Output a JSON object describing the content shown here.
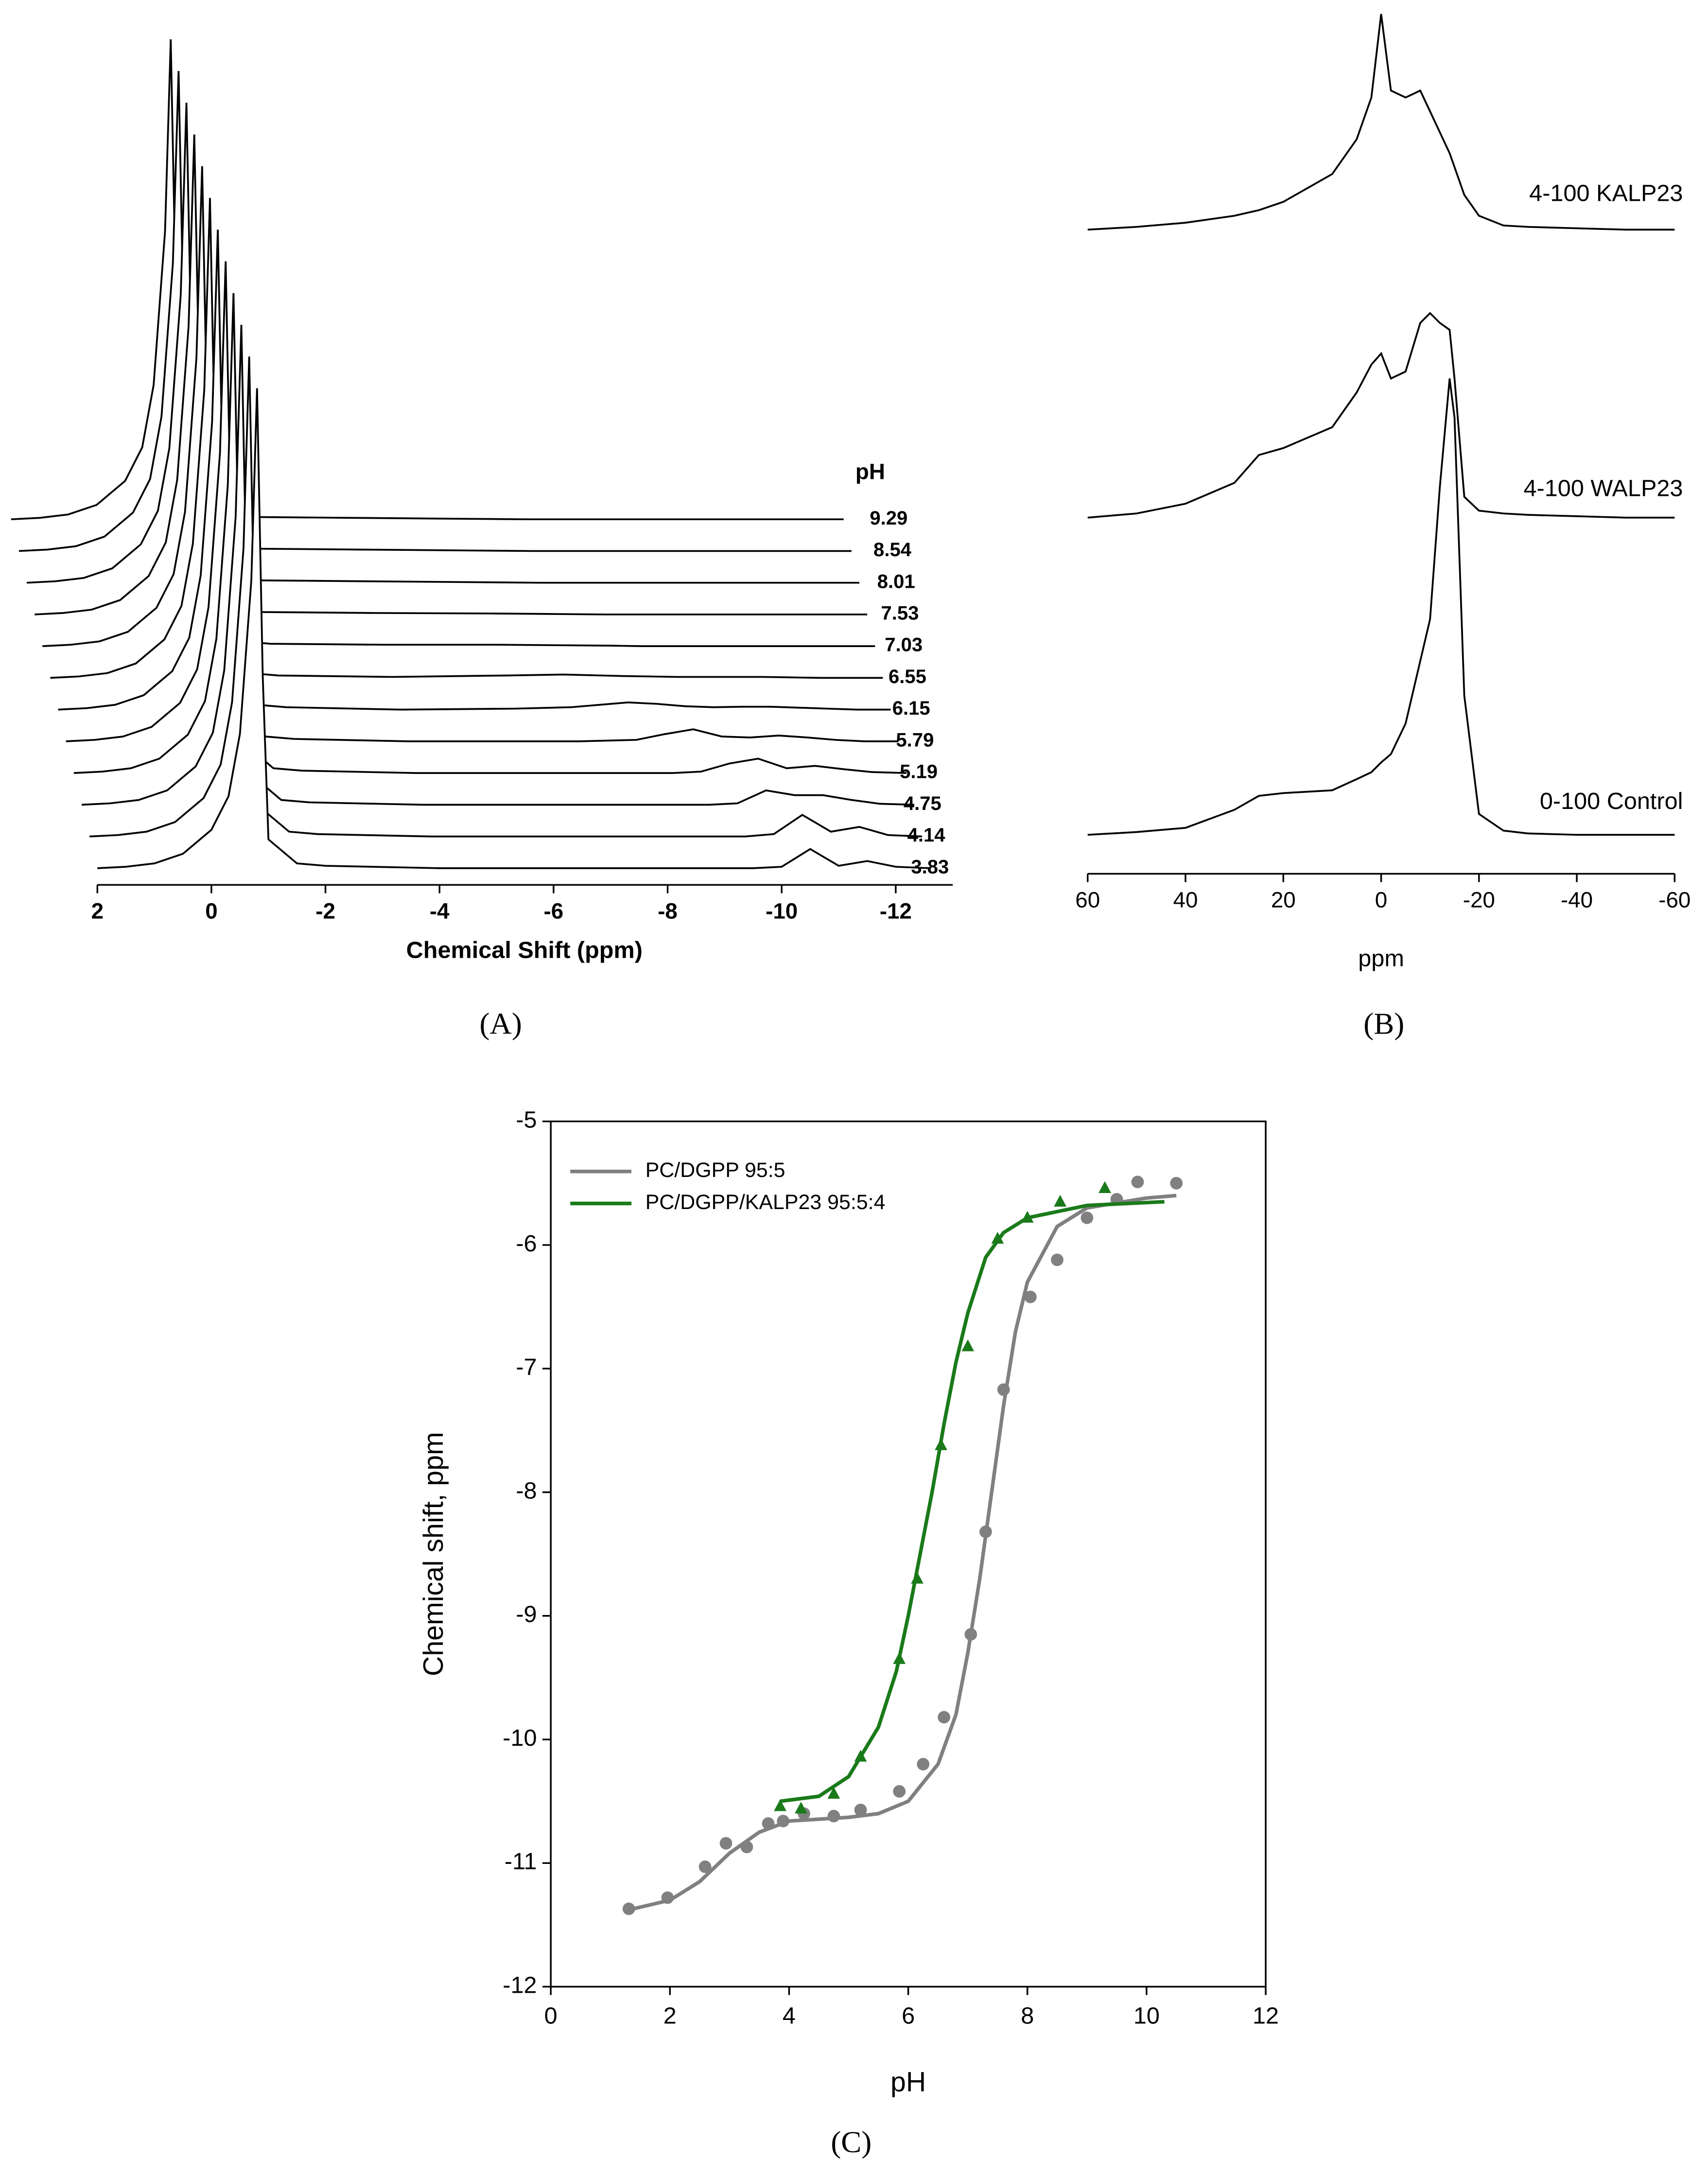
{
  "chart_data": [
    {
      "type": "line",
      "label": "(A)",
      "x_label": "Chemical Shift (ppm)",
      "legend_title": "pH",
      "xlim": [
        2,
        -13
      ],
      "xticks": [
        2,
        0,
        -2,
        -4,
        -6,
        -8,
        -10,
        -12
      ],
      "color": "#000000",
      "x": [
        2,
        1.5,
        1,
        0.5,
        0,
        -0.3,
        -0.5,
        -0.7,
        -0.8,
        -0.9,
        -1,
        -1.5,
        -2,
        -4,
        -6,
        -7,
        -8,
        -8.5,
        -9,
        -9.5,
        -10,
        -10.5,
        -11,
        -11.5,
        -12,
        -12.6
      ],
      "series": [
        {
          "name": "3.83",
          "values": [
            0,
            0.3,
            1,
            3,
            8,
            15,
            28,
            60,
            100,
            40,
            6,
            1,
            0.5,
            0,
            0,
            0,
            0,
            0,
            0,
            0,
            0.3,
            4,
            0.5,
            1.5,
            0.3,
            0
          ]
        },
        {
          "name": "4.14",
          "values": [
            0,
            0.3,
            1,
            3,
            8,
            15,
            28,
            60,
            100,
            40,
            6,
            1,
            0.5,
            0,
            0,
            0,
            0,
            0,
            0,
            0,
            0.5,
            4.5,
            1,
            2,
            0.3,
            0
          ]
        },
        {
          "name": "4.75",
          "values": [
            0,
            0.3,
            1,
            3,
            8,
            15,
            28,
            60,
            100,
            40,
            6,
            1,
            0.5,
            0,
            0,
            0,
            0,
            0,
            0,
            0.3,
            3,
            2,
            2,
            1,
            0.2,
            0
          ]
        },
        {
          "name": "5.19",
          "values": [
            0,
            0.3,
            1,
            3,
            8,
            15,
            28,
            60,
            100,
            40,
            6,
            1,
            0.5,
            0,
            0,
            0,
            0,
            0,
            0.3,
            2,
            3,
            1,
            1.5,
            0.8,
            0.2,
            0
          ]
        },
        {
          "name": "5.79",
          "values": [
            0,
            0.3,
            1,
            3,
            8,
            15,
            28,
            60,
            100,
            40,
            6,
            1,
            0.5,
            0,
            0,
            0,
            0.3,
            1.5,
            2.5,
            1,
            0.8,
            1.2,
            0.8,
            0.3,
            0,
            0
          ]
        },
        {
          "name": "6.15",
          "values": [
            0,
            0.3,
            1,
            3,
            8,
            15,
            28,
            60,
            100,
            40,
            6,
            1,
            0.5,
            0,
            0.2,
            0.5,
            1.5,
            1.2,
            0.7,
            0.5,
            0.6,
            0.6,
            0.4,
            0.2,
            0,
            0
          ]
        },
        {
          "name": "6.55",
          "values": [
            0,
            0.3,
            1,
            3,
            8,
            15,
            28,
            60,
            100,
            40,
            6,
            1,
            0.5,
            0.2,
            0.5,
            0.7,
            0.4,
            0.3,
            0.2,
            0.2,
            0.2,
            0.2,
            0.1,
            0,
            0,
            0
          ]
        },
        {
          "name": "7.03",
          "values": [
            0,
            0.3,
            1,
            3,
            8,
            15,
            28,
            60,
            100,
            40,
            6,
            1,
            0.5,
            0.3,
            0.3,
            0.2,
            0.1,
            0,
            0,
            0,
            0,
            0,
            0,
            0,
            0,
            0
          ]
        },
        {
          "name": "7.53",
          "values": [
            0,
            0.3,
            1,
            3,
            8,
            15,
            28,
            60,
            100,
            40,
            6,
            1,
            0.5,
            0.3,
            0.2,
            0.1,
            0,
            0,
            0,
            0,
            0,
            0,
            0,
            0,
            0,
            0
          ]
        },
        {
          "name": "8.01",
          "values": [
            0,
            0.3,
            1,
            3,
            8,
            15,
            28,
            60,
            100,
            40,
            6,
            1,
            0.5,
            0.3,
            0.1,
            0,
            0,
            0,
            0,
            0,
            0,
            0,
            0,
            0,
            0,
            0
          ]
        },
        {
          "name": "8.54",
          "values": [
            0,
            0.3,
            1,
            3,
            8,
            15,
            28,
            60,
            100,
            40,
            6,
            1,
            0.5,
            0.3,
            0.1,
            0,
            0,
            0,
            0,
            0,
            0,
            0,
            0,
            0,
            0,
            0
          ]
        },
        {
          "name": "9.29",
          "values": [
            0,
            0.3,
            1,
            3,
            8,
            15,
            28,
            60,
            100,
            40,
            6,
            1,
            0.5,
            0.3,
            0.1,
            0,
            0,
            0,
            0,
            0,
            0,
            0,
            0,
            0,
            0,
            0
          ]
        }
      ]
    },
    {
      "type": "line",
      "label": "(B)",
      "x_label": "ppm",
      "xlim": [
        60,
        -60
      ],
      "xticks": [
        60,
        40,
        20,
        0,
        -20,
        -40,
        -60
      ],
      "color": "#000000",
      "x": [
        60,
        50,
        40,
        30,
        25,
        20,
        10,
        5,
        2,
        0,
        -2,
        -5,
        -8,
        -10,
        -12,
        -14,
        -15,
        -17,
        -20,
        -25,
        -30,
        -40,
        -50,
        -60
      ],
      "series": [
        {
          "name": "4-100 KALP23",
          "values": [
            0,
            2,
            5,
            10,
            14,
            20,
            40,
            65,
            95,
            155,
            100,
            95,
            100,
            85,
            70,
            55,
            45,
            25,
            10,
            3,
            2,
            1,
            0,
            0
          ]
        },
        {
          "name": "4-100 WALP23",
          "values": [
            0,
            3,
            10,
            25,
            45,
            50,
            65,
            90,
            110,
            118,
            100,
            105,
            140,
            147,
            140,
            135,
            100,
            15,
            5,
            3,
            2,
            1,
            0,
            0
          ]
        },
        {
          "name": "0-100 Control",
          "values": [
            0,
            2,
            5,
            18,
            28,
            30,
            32,
            40,
            45,
            52,
            58,
            80,
            125,
            155,
            250,
            328,
            300,
            100,
            15,
            3,
            1,
            0,
            0,
            0
          ]
        }
      ]
    },
    {
      "type": "scatter",
      "label": "(C)",
      "x_label": "pH",
      "y_label": "Chemical shift, ppm",
      "legend": "upper left",
      "xlim": [
        0,
        12
      ],
      "xticks": [
        0,
        2,
        4,
        6,
        8,
        10,
        12
      ],
      "ylim": [
        -12,
        -5
      ],
      "yticks": [
        -12,
        -11,
        -10,
        -9,
        -8,
        -7,
        -6,
        -5
      ],
      "series": [
        {
          "name": "PC/DGPP 95:5",
          "color": "#808080",
          "marker": "circle",
          "x": [
            1.31,
            1.96,
            2.59,
            2.94,
            3.29,
            3.65,
            3.9,
            4.25,
            4.75,
            5.2,
            5.85,
            6.25,
            6.6,
            7.05,
            7.3,
            7.6,
            8.05,
            8.5,
            9.0,
            9.5,
            9.85,
            10.5
          ],
          "values": [
            -11.37,
            -11.28,
            -11.03,
            -10.84,
            -10.87,
            -10.68,
            -10.66,
            -10.6,
            -10.62,
            -10.57,
            -10.42,
            -10.2,
            -9.82,
            -9.15,
            -8.32,
            -7.17,
            -6.42,
            -6.12,
            -5.78,
            -5.63,
            -5.49,
            -5.5
          ],
          "fit_x": [
            1.3,
            2,
            2.5,
            3,
            3.5,
            4,
            5,
            5.5,
            6,
            6.5,
            6.8,
            7,
            7.2,
            7.4,
            7.6,
            7.8,
            8,
            8.5,
            9,
            10,
            10.5
          ],
          "fit_values": [
            -11.38,
            -11.3,
            -11.15,
            -10.92,
            -10.75,
            -10.66,
            -10.63,
            -10.6,
            -10.5,
            -10.2,
            -9.8,
            -9.3,
            -8.7,
            -8.0,
            -7.3,
            -6.7,
            -6.3,
            -5.85,
            -5.7,
            -5.62,
            -5.6
          ]
        },
        {
          "name": "PC/DGPP/KALP23 95:5:4",
          "color": "#1a7a1a",
          "marker": "triangle",
          "x": [
            3.85,
            4.2,
            4.75,
            5.2,
            5.85,
            6.15,
            6.55,
            7.0,
            7.5,
            8.0,
            8.55,
            9.3
          ],
          "values": [
            -10.54,
            -10.56,
            -10.44,
            -10.14,
            -9.35,
            -8.7,
            -7.62,
            -6.82,
            -5.95,
            -5.78,
            -5.65,
            -5.54
          ],
          "fit_x": [
            3.85,
            4.5,
            5,
            5.5,
            5.8,
            6,
            6.2,
            6.4,
            6.6,
            6.8,
            7,
            7.3,
            7.6,
            8,
            9,
            10.3
          ],
          "fit_values": [
            -10.5,
            -10.46,
            -10.3,
            -9.9,
            -9.45,
            -9.0,
            -8.5,
            -8.0,
            -7.45,
            -6.95,
            -6.55,
            -6.1,
            -5.9,
            -5.78,
            -5.68,
            -5.65
          ]
        }
      ]
    }
  ]
}
